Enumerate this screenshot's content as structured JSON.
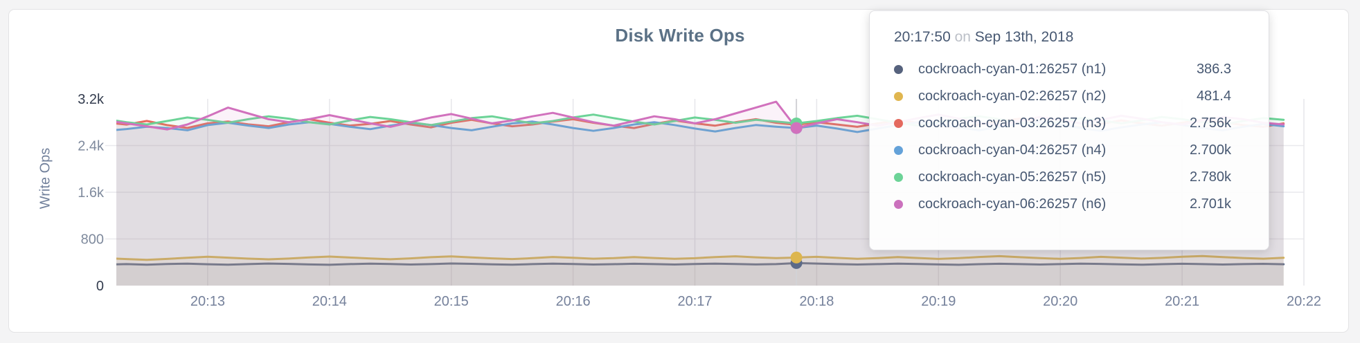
{
  "card": {
    "title": "Disk Write Ops"
  },
  "chart_data": {
    "type": "line",
    "title": "Disk Write Ops",
    "ylabel": "Write Ops",
    "ylim": [
      0,
      3200
    ],
    "grid": true,
    "legend_position": "tooltip",
    "y_ticks": [
      {
        "label": "0",
        "value": 0
      },
      {
        "label": "800",
        "value": 800
      },
      {
        "label": "1.6k",
        "value": 1600
      },
      {
        "label": "2.4k",
        "value": 2400
      },
      {
        "label": "3.2k",
        "value": 3200
      }
    ],
    "x_ticks": [
      "20:13",
      "20:14",
      "20:15",
      "20:16",
      "20:17",
      "20:18",
      "20:19",
      "20:20",
      "20:21",
      "20:22"
    ],
    "start_time": "20:12:10",
    "interval_seconds": 10,
    "hover": {
      "time": "20:17:50",
      "index": 34
    },
    "series": [
      {
        "name": "cockroach-cyan-01:26257 (n1)",
        "color": "#5b6a88",
        "values": [
          362,
          368,
          359,
          371,
          376,
          366,
          358,
          369,
          378,
          372,
          363,
          357,
          368,
          377,
          371,
          362,
          369,
          379,
          373,
          365,
          359,
          368,
          376,
          370,
          361,
          367,
          375,
          369,
          362,
          370,
          377,
          371,
          363,
          369,
          386.3,
          378,
          369,
          361,
          368,
          376,
          371,
          363,
          357,
          367,
          375,
          369,
          361,
          368,
          377,
          372,
          364,
          358,
          367,
          374,
          369,
          362,
          368,
          373,
          366
        ]
      },
      {
        "name": "cockroach-cyan-02:26257 (n2)",
        "color": "#ddb64f",
        "values": [
          470,
          455,
          442,
          458,
          478,
          494,
          479,
          462,
          450,
          464,
          484,
          498,
          481,
          465,
          452,
          467,
          487,
          501,
          483,
          467,
          455,
          470,
          491,
          477,
          461,
          471,
          488,
          473,
          459,
          469,
          489,
          503,
          485,
          470,
          481.4,
          493,
          475,
          459,
          470,
          488,
          473,
          458,
          471,
          491,
          505,
          487,
          471,
          459,
          473,
          493,
          479,
          463,
          475,
          494,
          507,
          489,
          473,
          461,
          478
        ]
      },
      {
        "name": "cockroach-cyan-03:26257 (n3)",
        "color": "#ea6a5e",
        "values": [
          2795,
          2760,
          2822,
          2751,
          2702,
          2781,
          2812,
          2763,
          2731,
          2801,
          2851,
          2791,
          2742,
          2772,
          2821,
          2762,
          2712,
          2791,
          2841,
          2781,
          2731,
          2761,
          2812,
          2851,
          2791,
          2741,
          2701,
          2771,
          2831,
          2781,
          2741,
          2801,
          2851,
          2791,
          2756,
          2801,
          2761,
          2721,
          2781,
          2831,
          2791,
          2751,
          2701,
          2761,
          2821,
          2861,
          2801,
          2751,
          2711,
          2771,
          2831,
          2781,
          2741,
          2791,
          2841,
          2801,
          2751,
          2721,
          2781
        ]
      },
      {
        "name": "cockroach-cyan-04:26257 (n4)",
        "color": "#64a3d9",
        "values": [
          2652,
          2683,
          2722,
          2701,
          2662,
          2751,
          2791,
          2742,
          2701,
          2762,
          2801,
          2771,
          2722,
          2681,
          2742,
          2791,
          2752,
          2701,
          2662,
          2722,
          2781,
          2811,
          2762,
          2701,
          2652,
          2701,
          2762,
          2801,
          2752,
          2691,
          2642,
          2701,
          2752,
          2722,
          2700,
          2742,
          2691,
          2632,
          2691,
          2752,
          2801,
          2762,
          2711,
          2662,
          2722,
          2771,
          2811,
          2762,
          2701,
          2652,
          2712,
          2762,
          2801,
          2752,
          2701,
          2662,
          2722,
          2771,
          2731
        ]
      },
      {
        "name": "cockroach-cyan-05:26257 (n5)",
        "color": "#6cd397",
        "values": [
          2852,
          2801,
          2762,
          2821,
          2881,
          2841,
          2791,
          2851,
          2901,
          2861,
          2801,
          2762,
          2831,
          2891,
          2851,
          2801,
          2752,
          2811,
          2871,
          2901,
          2841,
          2781,
          2821,
          2881,
          2931,
          2871,
          2811,
          2762,
          2821,
          2881,
          2841,
          2791,
          2841,
          2811,
          2780,
          2821,
          2871,
          2911,
          2851,
          2791,
          2742,
          2801,
          2861,
          2901,
          2851,
          2791,
          2752,
          2811,
          2871,
          2831,
          2781,
          2831,
          2891,
          2851,
          2801,
          2762,
          2821,
          2871,
          2841
        ]
      },
      {
        "name": "cockroach-cyan-06:26257 (n6)",
        "color": "#d171bd",
        "values": [
          2831,
          2781,
          2731,
          2676,
          2761,
          2901,
          3051,
          2951,
          2851,
          2801,
          2851,
          2921,
          2851,
          2781,
          2721,
          2801,
          2881,
          2941,
          2861,
          2781,
          2831,
          2901,
          2961,
          2881,
          2801,
          2741,
          2821,
          2901,
          2851,
          2781,
          2851,
          2951,
          3051,
          3151,
          2701,
          2781,
          2851,
          2801,
          2741,
          2801,
          2871,
          2931,
          2861,
          2791,
          2751,
          2821,
          2891,
          2841,
          2781,
          2841,
          2911,
          2861,
          2801,
          2761,
          2831,
          2891,
          2851,
          2791,
          2761
        ]
      }
    ]
  },
  "tooltip": {
    "time": "20:17:50",
    "on_word": "on",
    "date": "Sep 13th, 2018",
    "rows": [
      {
        "name": "cockroach-cyan-01:26257 (n1)",
        "value": "386.3",
        "color": "#56627d"
      },
      {
        "name": "cockroach-cyan-02:26257 (n2)",
        "value": "481.4",
        "color": "#e0b64f"
      },
      {
        "name": "cockroach-cyan-03:26257 (n3)",
        "value": "2.756k",
        "color": "#e4695e"
      },
      {
        "name": "cockroach-cyan-04:26257 (n4)",
        "value": "2.700k",
        "color": "#64a2d9"
      },
      {
        "name": "cockroach-cyan-05:26257 (n5)",
        "value": "2.780k",
        "color": "#6cd397"
      },
      {
        "name": "cockroach-cyan-06:26257 (n6)",
        "value": "2.701k",
        "color": "#cb71bd"
      }
    ]
  }
}
